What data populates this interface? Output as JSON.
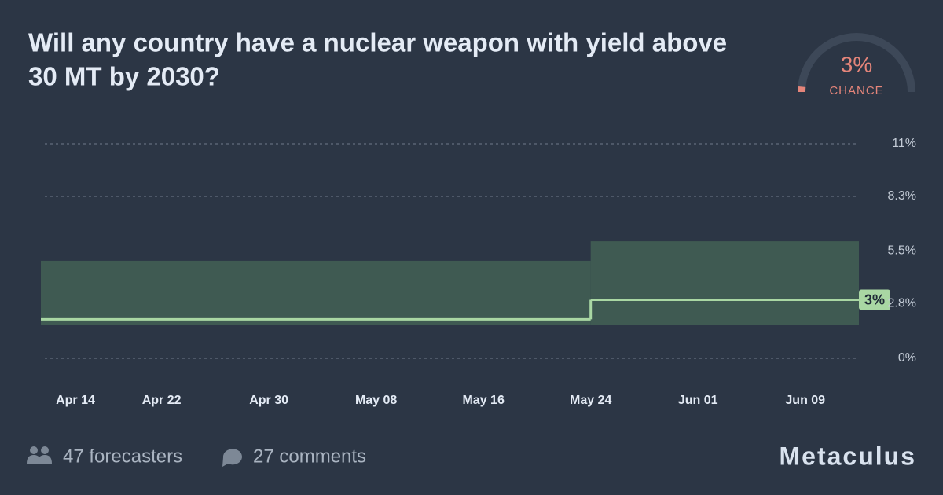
{
  "chart_data": {
    "type": "step",
    "title_lines": [
      "Will any country have a nuclear weapon with yield above",
      "30 MT by 2030?"
    ],
    "x": [
      "Apr 13",
      "May 24"
    ],
    "xlim": [
      "Apr 13",
      "Jun 13"
    ],
    "xticks": [
      "Apr 14",
      "Apr 22",
      "Apr 30",
      "May 08",
      "May 16",
      "May 24",
      "Jun 01",
      "Jun 09"
    ],
    "series": [
      {
        "color": "#a9d7a3",
        "median": [
          2.0,
          3.0
        ],
        "lower": [
          1.7,
          1.7
        ],
        "upper": [
          5.0,
          6.0
        ],
        "band_color": "#3f5a52",
        "end_label": "3%"
      }
    ],
    "ylim": [
      0,
      11
    ],
    "yticks": [
      {
        "value": 0,
        "label": "0%"
      },
      {
        "value": 2.8,
        "label": "2.8%"
      },
      {
        "value": 5.5,
        "label": "5.5%"
      },
      {
        "value": 8.3,
        "label": "8.3%"
      },
      {
        "value": 11,
        "label": "11%"
      }
    ],
    "grid": true,
    "forecast": {
      "value": 3,
      "max": 100,
      "label": "3%",
      "caption": "CHANCE",
      "color": "#e5857a"
    }
  },
  "footer": {
    "forecasters": "47 forecasters",
    "comments": "27 comments",
    "brand": "Metaculus"
  }
}
